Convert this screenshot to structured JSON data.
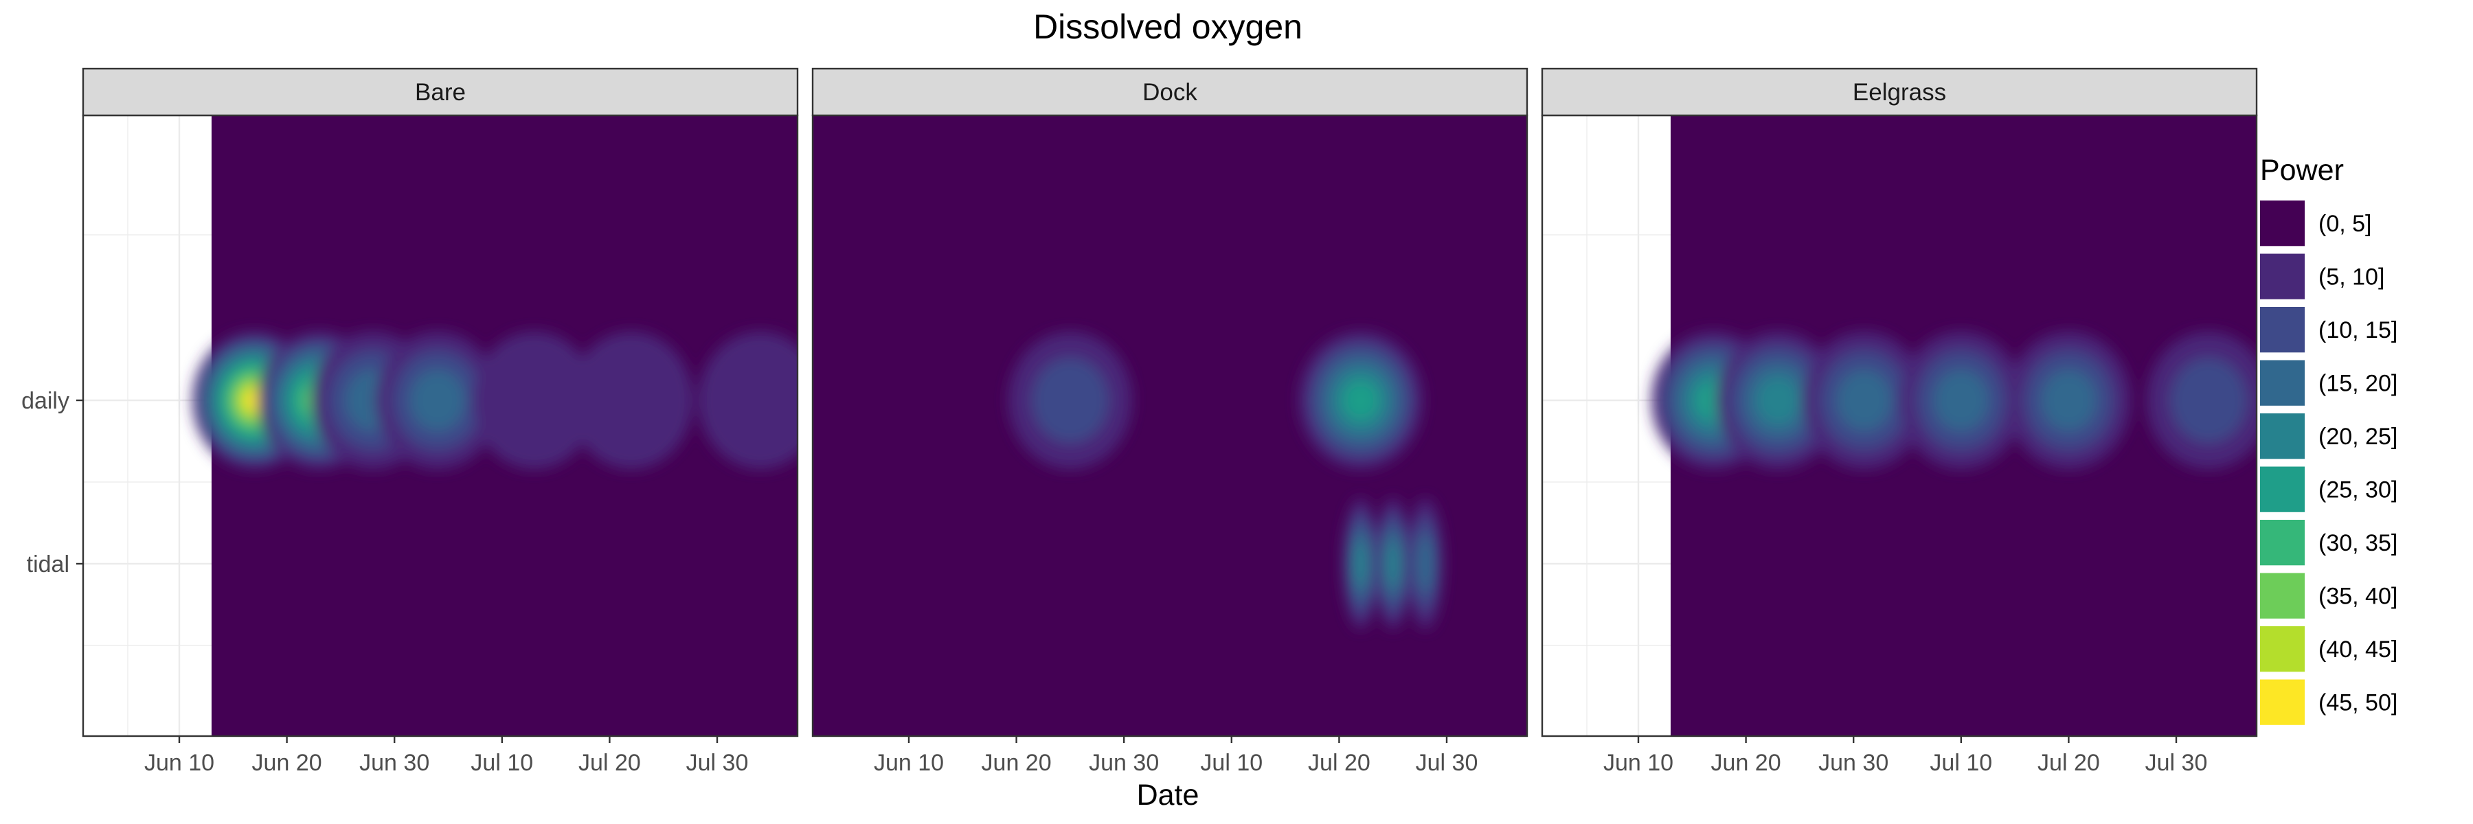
{
  "chart_data": {
    "type": "heatmap",
    "title": "Dissolved oxygen",
    "xlabel": "Date",
    "ylabel": "",
    "x_ticks": [
      "Jun 10",
      "Jun 20",
      "Jun 30",
      "Jul 10",
      "Jul 20",
      "Jul 30"
    ],
    "y_ticks": [
      "daily",
      "tidal"
    ],
    "grid": true,
    "legend": {
      "title": "Power",
      "position": "right",
      "bins": [
        {
          "label": "(0, 5]",
          "color": "#440154"
        },
        {
          "label": "(5, 10]",
          "color": "#482878"
        },
        {
          "label": "(10, 15]",
          "color": "#3E4A89"
        },
        {
          "label": "(15, 20]",
          "color": "#31688E"
        },
        {
          "label": "(20, 25]",
          "color": "#26828E"
        },
        {
          "label": "(25, 30]",
          "color": "#1F9E89"
        },
        {
          "label": "(30, 35]",
          "color": "#35B779"
        },
        {
          "label": "(35, 40]",
          "color": "#6DCD59"
        },
        {
          "label": "(40, 45]",
          "color": "#B4DE2C"
        },
        {
          "label": "(45, 50]",
          "color": "#FDE725"
        }
      ]
    },
    "panels": [
      {
        "name": "Bare",
        "data_start": "Jun 13",
        "hotspots": [
          {
            "date": "Jun 17",
            "period": "daily",
            "power": 48
          },
          {
            "date": "Jun 23",
            "period": "daily",
            "power": 37
          },
          {
            "date": "Jun 28",
            "period": "daily",
            "power": 20
          },
          {
            "date": "Jul 4",
            "period": "daily",
            "power": 17
          },
          {
            "date": "Jul 13",
            "period": "daily",
            "power": 9
          },
          {
            "date": "Jul 22",
            "period": "daily",
            "power": 9
          },
          {
            "date": "Aug 3",
            "period": "daily",
            "power": 8
          }
        ]
      },
      {
        "name": "Dock",
        "data_start": "",
        "hotspots": [
          {
            "date": "Jun 25",
            "period": "daily",
            "power": 12
          },
          {
            "date": "Jul 22",
            "period": "daily",
            "power": 28
          },
          {
            "date": "Jul 22",
            "period": "tidal",
            "power": 22
          },
          {
            "date": "Jul 25",
            "period": "tidal",
            "power": 21
          },
          {
            "date": "Jul 28",
            "period": "tidal",
            "power": 18
          }
        ]
      },
      {
        "name": "Eelgrass",
        "data_start": "Jun 13",
        "hotspots": [
          {
            "date": "Jun 17",
            "period": "daily",
            "power": 30
          },
          {
            "date": "Jun 23",
            "period": "daily",
            "power": 25
          },
          {
            "date": "Jul 1",
            "period": "daily",
            "power": 18
          },
          {
            "date": "Jul 10",
            "period": "daily",
            "power": 16
          },
          {
            "date": "Jul 20",
            "period": "daily",
            "power": 16
          },
          {
            "date": "Aug 2",
            "period": "daily",
            "power": 12
          }
        ]
      }
    ]
  }
}
